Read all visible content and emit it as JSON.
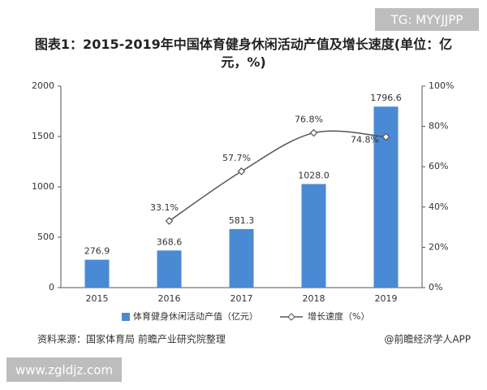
{
  "chart_data": {
    "type": "bar",
    "title": "图表1：2015-2019年中国体育健身休闲活动产值及增长速度(单位：亿元，%)",
    "categories": [
      "2015",
      "2016",
      "2017",
      "2018",
      "2019"
    ],
    "series": [
      {
        "name": "体育健身休闲活动产值（亿元）",
        "type": "bar",
        "color": "#4a8ad4",
        "values": [
          276.9,
          368.6,
          581.3,
          1028.0,
          1796.6
        ],
        "value_labels": [
          "276.9",
          "368.6",
          "581.3",
          "1028.0",
          "1796.6"
        ]
      },
      {
        "name": "增长速度（%）",
        "type": "line",
        "axis": "y2",
        "color": "#555555",
        "values": [
          null,
          33.1,
          57.7,
          76.8,
          74.8
        ],
        "value_labels": [
          null,
          "33.1%",
          "57.7%",
          "76.8%",
          "74.8%"
        ]
      }
    ],
    "ylim": [
      0,
      2000
    ],
    "yticks": [
      0,
      500,
      1000,
      1500,
      2000
    ],
    "y2lim": [
      0,
      100
    ],
    "y2ticks": [
      {
        "value": 0,
        "label": "0%"
      },
      {
        "value": 20,
        "label": "20%"
      },
      {
        "value": 40,
        "label": "40%"
      },
      {
        "value": 60,
        "label": "60%"
      },
      {
        "value": 80,
        "label": "80%"
      },
      {
        "value": 100,
        "label": "100%"
      }
    ],
    "grid": false,
    "source": "资料来源：国家体育局 前瞻产业研究院整理",
    "credit": "@前瞻经济学人APP",
    "watermark_top": "TG: MYYJJPP",
    "watermark_bottom": "www.zgldjz.com"
  }
}
